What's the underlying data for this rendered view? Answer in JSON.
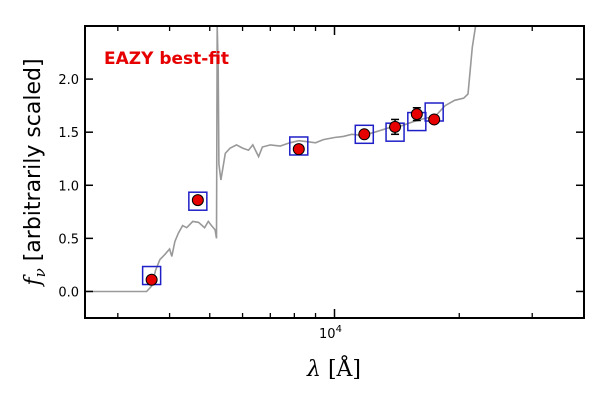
{
  "chart_data": {
    "type": "scatter",
    "annotation": "EAZY best-fit",
    "ylabel_prefix": "f",
    "ylabel_sub": "ν",
    "ylabel_rest": " [arbitrarily scaled]",
    "xlabel_symbol": "λ",
    "xlabel_unit": " [Å]",
    "x_scale": "log",
    "xlim": [
      2500,
      40000
    ],
    "ylim": [
      -0.25,
      2.5
    ],
    "y_ticks": [
      0.0,
      0.5,
      1.0,
      1.5,
      2.0
    ],
    "y_tick_labels": [
      "0.0",
      "0.5",
      "1.0",
      "1.5",
      "2.0"
    ],
    "x_major_ticks": [
      10000
    ],
    "x_major_tick_label_base": "10",
    "x_major_tick_label_exp": "4",
    "x_minor_ticks": [
      3000,
      4000,
      5000,
      6000,
      7000,
      8000,
      9000,
      20000,
      30000
    ],
    "colors": {
      "template": "#999999",
      "model_box": "#1f1fc8",
      "observed_fill": "#e60000",
      "observed_edge": "#000000",
      "annotation": "#e60000"
    },
    "series": [
      {
        "name": "",
        "kind": "template-line",
        "points": [
          [
            2500,
            0.0
          ],
          [
            3100,
            0.0
          ],
          [
            3520,
            0.0
          ],
          [
            3620,
            0.05
          ],
          [
            3700,
            0.2
          ],
          [
            3790,
            0.3
          ],
          [
            3900,
            0.35
          ],
          [
            4000,
            0.4
          ],
          [
            4050,
            0.33
          ],
          [
            4120,
            0.47
          ],
          [
            4200,
            0.55
          ],
          [
            4300,
            0.62
          ],
          [
            4400,
            0.6
          ],
          [
            4550,
            0.66
          ],
          [
            4700,
            0.65
          ],
          [
            4860,
            0.6
          ],
          [
            4960,
            0.66
          ],
          [
            5050,
            0.62
          ],
          [
            5150,
            0.58
          ],
          [
            5190,
            0.5
          ],
          [
            5210,
            2.5
          ],
          [
            5240,
            2.1
          ],
          [
            5260,
            1.2
          ],
          [
            5320,
            1.05
          ],
          [
            5450,
            1.3
          ],
          [
            5600,
            1.35
          ],
          [
            5800,
            1.38
          ],
          [
            6000,
            1.35
          ],
          [
            6200,
            1.33
          ],
          [
            6350,
            1.38
          ],
          [
            6560,
            1.27
          ],
          [
            6700,
            1.36
          ],
          [
            7000,
            1.38
          ],
          [
            7400,
            1.37
          ],
          [
            7800,
            1.4
          ],
          [
            8200,
            1.42
          ],
          [
            8600,
            1.41
          ],
          [
            9000,
            1.4
          ],
          [
            9400,
            1.43
          ],
          [
            10000,
            1.45
          ],
          [
            10500,
            1.46
          ],
          [
            11000,
            1.48
          ],
          [
            11700,
            1.47
          ],
          [
            12500,
            1.5
          ],
          [
            13500,
            1.54
          ],
          [
            14500,
            1.56
          ],
          [
            15500,
            1.6
          ],
          [
            16500,
            1.63
          ],
          [
            17500,
            1.65
          ],
          [
            18500,
            1.75
          ],
          [
            19500,
            1.8
          ],
          [
            20500,
            1.82
          ],
          [
            21000,
            1.86
          ],
          [
            21500,
            2.3
          ],
          [
            21900,
            2.5
          ]
        ]
      },
      {
        "name": "",
        "kind": "model-flux-box",
        "points": [
          [
            3620,
            0.15
          ],
          [
            4680,
            0.85
          ],
          [
            8200,
            1.37
          ],
          [
            11800,
            1.48
          ],
          [
            14000,
            1.5
          ],
          [
            15800,
            1.6
          ],
          [
            17400,
            1.69
          ]
        ]
      },
      {
        "name": "",
        "kind": "observed-flux",
        "points": [
          {
            "x": 3620,
            "y": 0.11,
            "err": 0.02
          },
          {
            "x": 4680,
            "y": 0.86,
            "err": 0.02
          },
          {
            "x": 8200,
            "y": 1.34,
            "err": 0.02
          },
          {
            "x": 11800,
            "y": 1.48,
            "err": 0.02
          },
          {
            "x": 14000,
            "y": 1.55,
            "err": 0.07
          },
          {
            "x": 15800,
            "y": 1.67,
            "err": 0.06
          },
          {
            "x": 17400,
            "y": 1.62,
            "err": 0.03
          }
        ]
      }
    ]
  }
}
